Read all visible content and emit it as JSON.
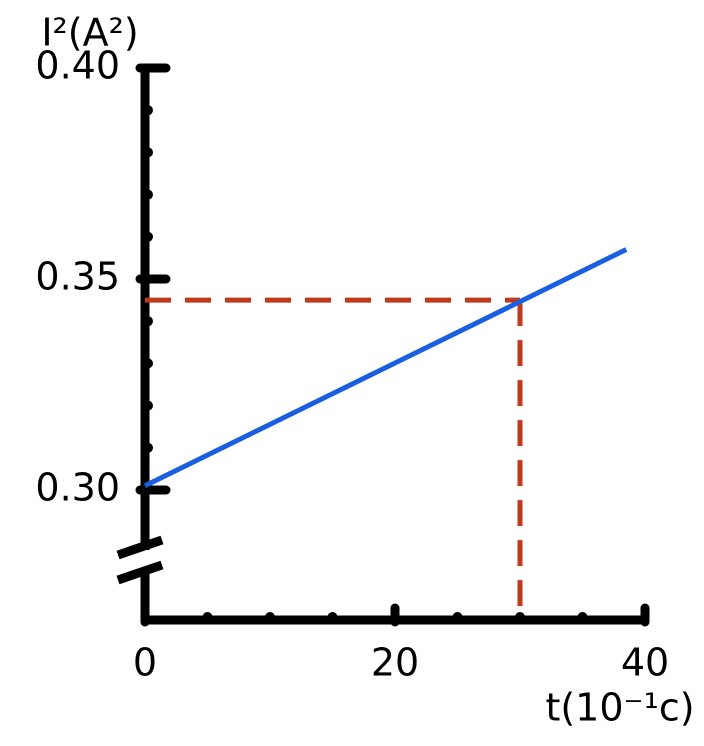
{
  "chart_data": {
    "type": "line",
    "y_label": "I²(A²)",
    "x_label": "t(10⁻¹c)",
    "x": [
      0,
      38.5
    ],
    "series": [
      {
        "name": "I²",
        "color": "#1a5fe0",
        "values": [
          0.301,
          0.357
        ]
      }
    ],
    "reference": {
      "x": 30,
      "y": 0.345,
      "color": "#c0391b"
    },
    "xlim": [
      0,
      40
    ],
    "ylim": [
      0.27,
      0.4
    ],
    "xticks": [
      0,
      20,
      40
    ],
    "yticks": [
      {
        "value": 0.3,
        "label": "0.30"
      },
      0.35,
      {
        "value": 0.4,
        "label": "0.40"
      }
    ],
    "xminorticks": [
      5,
      10,
      15,
      25,
      30,
      35
    ],
    "yminorticks": [
      0.31,
      0.32,
      0.33,
      0.34,
      0.36,
      0.37,
      0.38,
      0.39
    ]
  }
}
